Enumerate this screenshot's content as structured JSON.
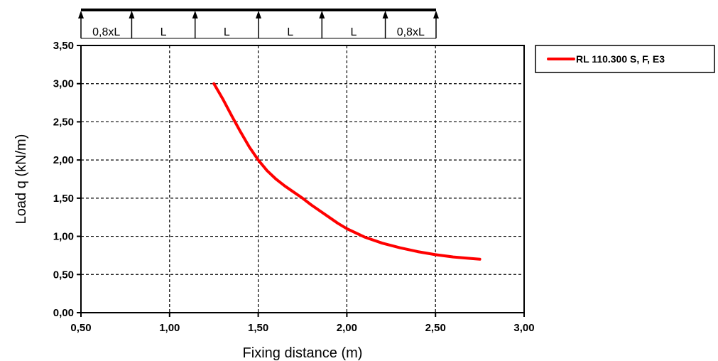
{
  "chart_data": {
    "type": "line",
    "xlabel": "Fixing distance (m)",
    "ylabel": "Load q (kN/m)",
    "xlim": [
      0.5,
      3.0
    ],
    "ylim": [
      0.0,
      3.5
    ],
    "x_ticks": [
      "0,50",
      "1,00",
      "1,50",
      "2,00",
      "2,50",
      "3,00"
    ],
    "y_ticks": [
      "0,00",
      "0,50",
      "1,00",
      "1,50",
      "2,00",
      "2,50",
      "3,00",
      "3,50"
    ],
    "grid": true,
    "legend_position": "right",
    "series": [
      {
        "name": "RL 110.300 S, F, E3",
        "color": "#ff0000",
        "x": [
          1.25,
          1.3,
          1.35,
          1.4,
          1.45,
          1.5,
          1.55,
          1.6,
          1.65,
          1.7,
          1.75,
          1.8,
          1.85,
          1.9,
          1.95,
          2.0,
          2.1,
          2.2,
          2.3,
          2.4,
          2.5,
          2.6,
          2.7,
          2.75
        ],
        "y": [
          3.0,
          2.8,
          2.58,
          2.37,
          2.17,
          2.0,
          1.86,
          1.75,
          1.66,
          1.58,
          1.5,
          1.41,
          1.33,
          1.25,
          1.17,
          1.1,
          0.99,
          0.91,
          0.85,
          0.8,
          0.76,
          0.73,
          0.71,
          0.7
        ]
      }
    ],
    "beam_diagram": {
      "spans": [
        "0,8xL",
        "L",
        "L",
        "L",
        "L",
        "0,8xL"
      ]
    }
  }
}
